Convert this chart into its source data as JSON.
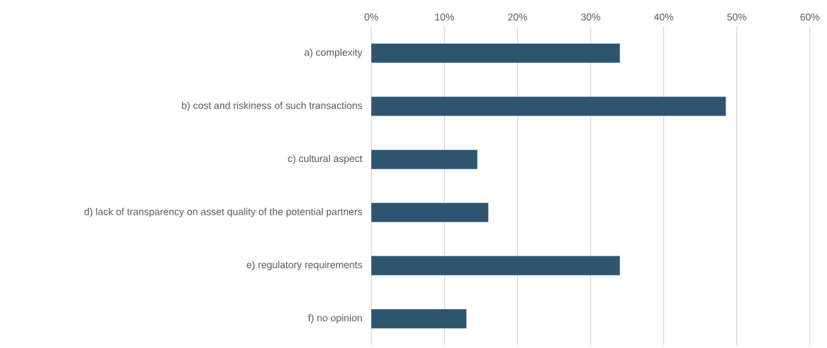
{
  "chart_data": {
    "type": "bar",
    "orientation": "horizontal",
    "categories": [
      "a) complexity",
      "b) cost and riskiness of such transactions",
      "c) cultural aspect",
      "d) lack of transparency on asset quality of the potential partners",
      "e) regulatory requirements",
      "f) no opinion"
    ],
    "values": [
      34,
      48.5,
      14.5,
      16,
      34,
      13
    ],
    "color": "#2f5470",
    "xlim": [
      0,
      60
    ],
    "xticks": [
      {
        "value": 0,
        "label": "0%"
      },
      {
        "value": 10,
        "label": "10%"
      },
      {
        "value": 20,
        "label": "20%"
      },
      {
        "value": 30,
        "label": "30%"
      },
      {
        "value": 40,
        "label": "40%"
      },
      {
        "value": 50,
        "label": "50%"
      },
      {
        "value": 60,
        "label": "60%"
      }
    ],
    "grid": "x"
  }
}
